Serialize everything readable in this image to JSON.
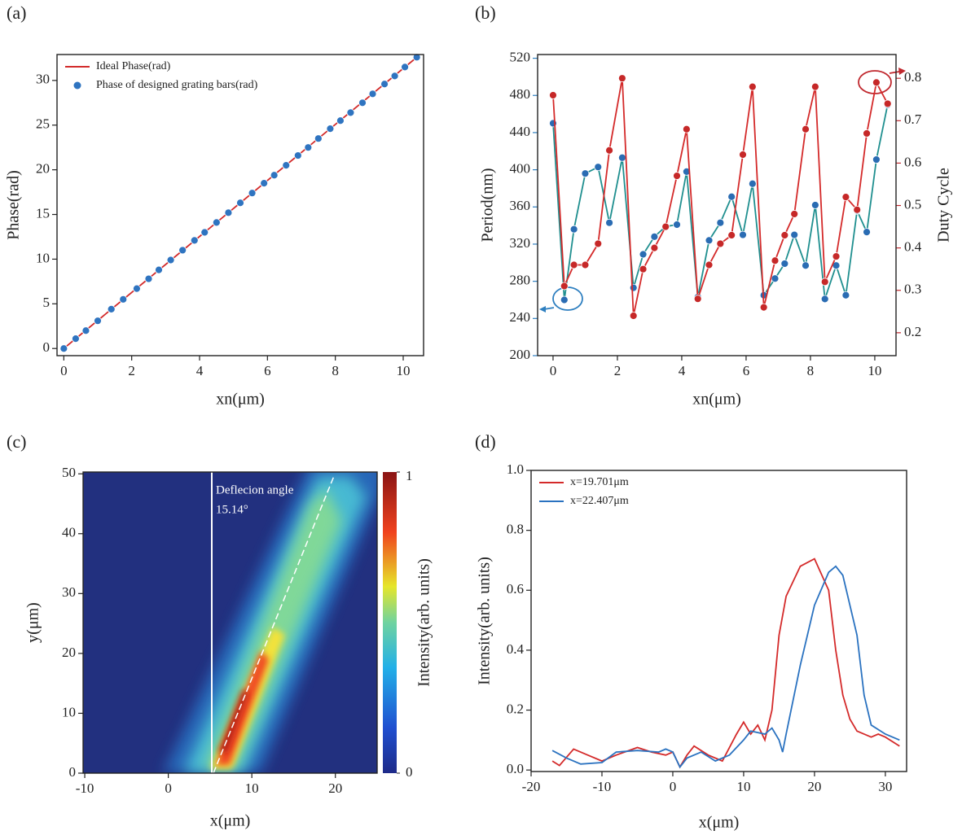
{
  "chart_data": [
    {
      "type": "line",
      "panel_label": "(a)",
      "x_label": "xn(μm)",
      "y_label": "Phase(rad)",
      "xlim": [
        -0.2,
        10.6
      ],
      "ylim": [
        -0.8,
        32.9
      ],
      "xticks": [
        0,
        2,
        4,
        6,
        8,
        10
      ],
      "yticks": [
        0,
        5,
        10,
        15,
        20,
        25,
        30
      ],
      "legend": "upper left",
      "series": [
        {
          "name": "Ideal Phase(rad)",
          "style": "line",
          "color": "#d22a2a",
          "x": [
            0,
            10.4
          ],
          "values": [
            0,
            32.6
          ]
        },
        {
          "name": "Phase of designed grating bars(rad)",
          "style": "markers",
          "color": "#2f74c0",
          "x": [
            0,
            0.35,
            0.65,
            1.0,
            1.4,
            1.75,
            2.15,
            2.5,
            2.8,
            3.15,
            3.5,
            3.85,
            4.15,
            4.5,
            4.85,
            5.2,
            5.55,
            5.9,
            6.2,
            6.55,
            6.9,
            7.2,
            7.5,
            7.85,
            8.15,
            8.45,
            8.8,
            9.1,
            9.45,
            9.75,
            10.05,
            10.4
          ],
          "values": [
            0,
            1.1,
            2.0,
            3.1,
            4.4,
            5.5,
            6.7,
            7.8,
            8.8,
            9.9,
            11.0,
            12.1,
            13.0,
            14.1,
            15.2,
            16.3,
            17.4,
            18.5,
            19.4,
            20.5,
            21.6,
            22.5,
            23.5,
            24.6,
            25.5,
            26.4,
            27.5,
            28.5,
            29.6,
            30.5,
            31.5,
            32.6
          ]
        }
      ]
    },
    {
      "type": "line",
      "panel_label": "(b)",
      "x_label": "xn(μm)",
      "y_label": "Period(nm)",
      "y2_label": "Duty Cycle",
      "y_color": "#2e7fc0",
      "y2_color": "#c0282e",
      "xlim": [
        -0.48,
        10.66
      ],
      "ylim": [
        200,
        524
      ],
      "y2lim": [
        0.146,
        0.856
      ],
      "xticks": [
        0,
        2,
        4,
        6,
        8,
        10
      ],
      "yticks": [
        200,
        240,
        280,
        320,
        360,
        400,
        440,
        480,
        520
      ],
      "y2ticks": [
        0.2,
        0.3,
        0.4,
        0.5,
        0.6,
        0.7,
        0.8
      ],
      "series": [
        {
          "style": "line+markers",
          "color": "#1f8f8f",
          "marker_color": "#2a6cb3",
          "x": [
            0,
            0.35,
            0.65,
            1.0,
            1.4,
            1.75,
            2.15,
            2.5,
            2.8,
            3.15,
            3.5,
            3.85,
            4.15,
            4.5,
            4.85,
            5.2,
            5.55,
            5.9,
            6.2,
            6.55,
            6.9,
            7.2,
            7.5,
            7.85,
            8.15,
            8.45,
            8.8,
            9.1,
            9.45,
            9.75,
            10.05,
            10.4
          ],
          "values": [
            450,
            260,
            336,
            396,
            403,
            343,
            413,
            273,
            309,
            328,
            339,
            341,
            398,
            263,
            324,
            343,
            371,
            330,
            385,
            265,
            283,
            299,
            330,
            297,
            362,
            261,
            297,
            265,
            356,
            333,
            411,
            470
          ]
        },
        {
          "style": "line+markers",
          "axis": "y2",
          "color": "#d42a2a",
          "marker_color": "#c62828",
          "x": [
            0,
            0.35,
            0.65,
            1.0,
            1.4,
            1.75,
            2.15,
            2.5,
            2.8,
            3.15,
            3.5,
            3.85,
            4.15,
            4.5,
            4.85,
            5.2,
            5.55,
            5.9,
            6.2,
            6.55,
            6.9,
            7.2,
            7.5,
            7.85,
            8.15,
            8.45,
            8.8,
            9.1,
            9.45,
            9.75,
            10.05,
            10.4
          ],
          "values": [
            0.76,
            0.31,
            0.36,
            0.36,
            0.41,
            0.63,
            0.8,
            0.24,
            0.35,
            0.4,
            0.45,
            0.57,
            0.68,
            0.28,
            0.36,
            0.41,
            0.43,
            0.62,
            0.78,
            0.26,
            0.37,
            0.43,
            0.48,
            0.68,
            0.78,
            0.32,
            0.38,
            0.52,
            0.49,
            0.67,
            0.79,
            0.74
          ]
        }
      ]
    },
    {
      "type": "heatmap",
      "panel_label": "(c)",
      "x_label": "x(μm)",
      "y_label": "y(μm)",
      "colorbar_label": "Intensity(arb. units)",
      "annotations": [
        "Deflecion angle",
        "15.14°"
      ],
      "xlim": [
        -10.2,
        25
      ],
      "ylim": [
        0,
        50.3
      ],
      "xticks": [
        -10,
        0,
        10,
        20
      ],
      "yticks": [
        0,
        10,
        20,
        30,
        40,
        50
      ],
      "zlim": [
        0,
        1
      ],
      "zticks": [
        0,
        1
      ]
    },
    {
      "type": "line",
      "panel_label": "(d)",
      "x_label": "x(μm)",
      "y_label": "Intensity(arb. units)",
      "xlim": [
        -20,
        33
      ],
      "ylim": [
        -0.005,
        1.0
      ],
      "xticks": [
        -20,
        -10,
        0,
        10,
        20,
        30
      ],
      "yticks": [
        {
          "value": 0,
          "label": "0.0"
        },
        0.2,
        0.4,
        0.6,
        0.8,
        {
          "value": 1,
          "label": "1.0"
        }
      ],
      "legend": "upper left",
      "series": [
        {
          "name": "x=19.701μm",
          "style": "line",
          "color": "#d42a2a",
          "x": [
            -17,
            -16,
            -14,
            -12,
            -10,
            -8,
            -5,
            -3,
            -1,
            0,
            1,
            2,
            3,
            5,
            7,
            9,
            10,
            11,
            12,
            13,
            14,
            15,
            16,
            18,
            20,
            22,
            23,
            24,
            25,
            26,
            28,
            29,
            30,
            32
          ],
          "values": [
            0.03,
            0.015,
            0.07,
            0.05,
            0.03,
            0.05,
            0.075,
            0.06,
            0.05,
            0.06,
            0.01,
            0.05,
            0.08,
            0.05,
            0.03,
            0.12,
            0.16,
            0.12,
            0.15,
            0.1,
            0.2,
            0.45,
            0.58,
            0.68,
            0.705,
            0.6,
            0.4,
            0.25,
            0.17,
            0.13,
            0.11,
            0.12,
            0.11,
            0.08
          ]
        },
        {
          "name": "x=22.407μm",
          "style": "line",
          "color": "#2a72c0",
          "x": [
            -17,
            -15,
            -13,
            -10,
            -8,
            -5,
            -2,
            -1,
            0,
            1,
            2,
            4,
            6,
            8,
            10,
            11,
            13,
            14,
            15,
            15.5,
            16,
            18,
            20,
            22,
            23,
            24,
            26,
            27,
            28,
            30,
            32
          ],
          "values": [
            0.065,
            0.04,
            0.02,
            0.025,
            0.06,
            0.065,
            0.06,
            0.07,
            0.06,
            0.01,
            0.04,
            0.06,
            0.03,
            0.05,
            0.1,
            0.13,
            0.12,
            0.14,
            0.1,
            0.06,
            0.12,
            0.35,
            0.55,
            0.66,
            0.68,
            0.65,
            0.45,
            0.25,
            0.15,
            0.12,
            0.1
          ]
        }
      ]
    }
  ]
}
